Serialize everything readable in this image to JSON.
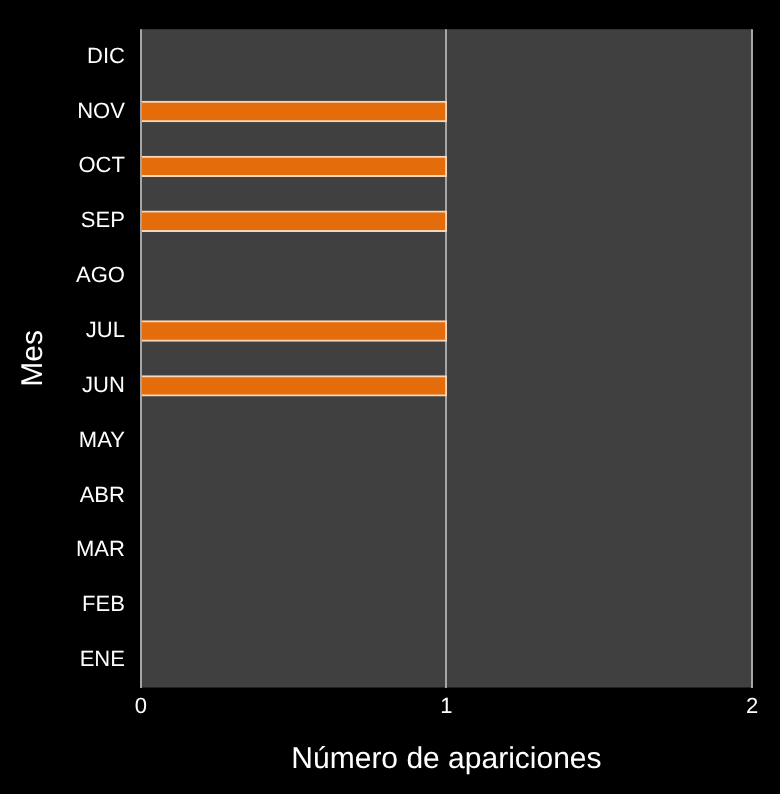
{
  "chart_data": {
    "type": "bar",
    "orientation": "horizontal",
    "xlabel": "Número de apariciones",
    "ylabel": "Mes",
    "categories": [
      "DIC",
      "NOV",
      "OCT",
      "SEP",
      "AGO",
      "JUL",
      "JUN",
      "MAY",
      "ABR",
      "MAR",
      "FEB",
      "ENE"
    ],
    "values": [
      0,
      1,
      1,
      1,
      0,
      1,
      1,
      0,
      0,
      0,
      0,
      0
    ],
    "color": "#e46c0a",
    "xlim": [
      0,
      2
    ],
    "xticks": [
      0,
      1,
      2
    ],
    "grid": "x",
    "legend": false
  }
}
